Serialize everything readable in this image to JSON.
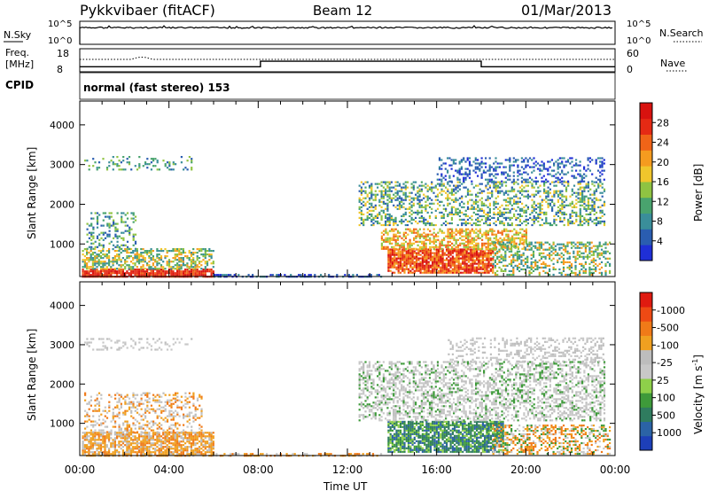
{
  "header": {
    "station": "Pykkvibaer (fitACF)",
    "beam": "Beam 12",
    "date": "01/Mar/2013"
  },
  "noise_panel": {
    "left_label": "N.Sky",
    "left_ticks": [
      "10^5",
      "10^0"
    ],
    "right_ticks": [
      "10^5",
      "10^0"
    ],
    "right_label": "N.Search"
  },
  "freq_panel": {
    "left_label_line1": "Freq.",
    "left_label_line2": "[MHz]",
    "left_ticks": [
      "18",
      "8"
    ],
    "right_ticks": [
      "60",
      "0"
    ],
    "right_label": "Nave",
    "cpid_label": "CPID",
    "cpid_text": "normal (fast stereo) 153"
  },
  "chart_data": [
    {
      "type": "heatmap",
      "name": "power",
      "ylabel": "Slant Range [km]",
      "yticks": [
        1000,
        2000,
        3000,
        4000
      ],
      "ylim": [
        180,
        4600
      ],
      "xlim": [
        0,
        24
      ],
      "colorbar": {
        "label": "Power [dB]",
        "tick_labels": [
          "4",
          "8",
          "12",
          "16",
          "20",
          "24",
          "28"
        ],
        "colors": [
          "#1f2fd6",
          "#2a5db0",
          "#3a8e9a",
          "#49a36e",
          "#8fc342",
          "#f0c62c",
          "#f59b1f",
          "#f06418",
          "#e52a14",
          "#d8120f"
        ]
      }
    },
    {
      "type": "heatmap",
      "name": "velocity",
      "ylabel": "Slant Range [km]",
      "yticks": [
        1000,
        2000,
        3000,
        4000
      ],
      "ylim": [
        180,
        4600
      ],
      "xlim": [
        0,
        24
      ],
      "xlabel": "Time UT",
      "xtick_labels": [
        "00:00",
        "04:00",
        "08:00",
        "12:00",
        "16:00",
        "20:00",
        "00:00"
      ],
      "colorbar": {
        "label": "Velocity [m s",
        "label_sup": "-1",
        "label_end": "]",
        "tick_labels": [
          "1000",
          "500",
          "100",
          "25",
          "-25",
          "-100",
          "-500",
          "-1000"
        ],
        "colors": [
          "#1d3fb8",
          "#2b63a6",
          "#2f7c5f",
          "#3e9a3a",
          "#8ed04a",
          "#c8c8c8",
          "#bdbdbd",
          "#f0a020",
          "#f07a18",
          "#ee4a14",
          "#e01a10"
        ]
      }
    }
  ]
}
